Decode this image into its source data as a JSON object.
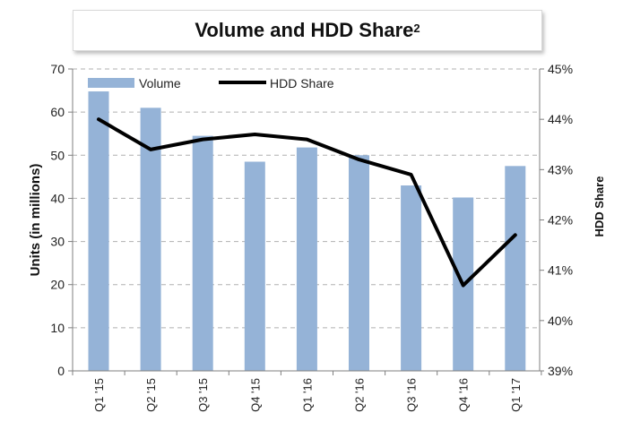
{
  "chart_data": {
    "type": "bar+line",
    "title": "Volume and HDD Share",
    "title_superscript": "2",
    "categories": [
      "Q1 '15",
      "Q2 '15",
      "Q3 '15",
      "Q4 '15",
      "Q1 '16",
      "Q2 '16",
      "Q3 '16",
      "Q4 '16",
      "Q1 '17"
    ],
    "series": [
      {
        "name": "Volume",
        "type": "bar",
        "axis": "left",
        "color": "#95b3d7",
        "values": [
          64.8,
          61.0,
          54.5,
          48.5,
          51.8,
          50.0,
          43.0,
          40.2,
          47.5
        ]
      },
      {
        "name": "HDD Share",
        "type": "line",
        "axis": "right",
        "color": "#000000",
        "values": [
          44.0,
          43.4,
          43.6,
          43.7,
          43.6,
          43.2,
          42.9,
          40.7,
          41.7
        ]
      }
    ],
    "ylabel": "Units (in millions)",
    "y2label": "HDD Share",
    "ylim": [
      0,
      70
    ],
    "yticks": [
      0,
      10,
      20,
      30,
      40,
      50,
      60,
      70
    ],
    "y2lim": [
      39,
      45
    ],
    "y2ticks": [
      "39%",
      "40%",
      "41%",
      "42%",
      "43%",
      "44%",
      "45%"
    ],
    "grid": "horizontal dashed",
    "legend": "top-left"
  }
}
